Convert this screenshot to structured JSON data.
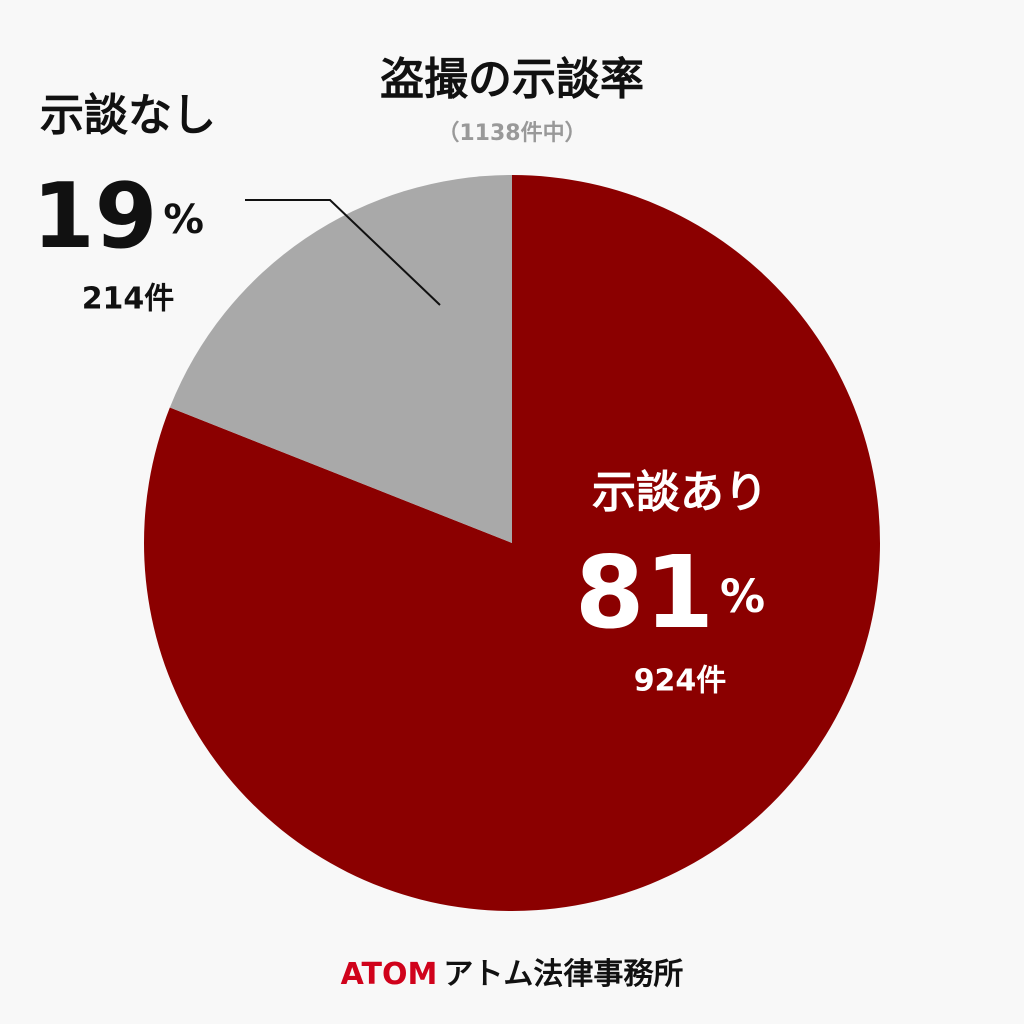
{
  "chart_data": {
    "type": "pie",
    "title": "盗撮の示談率",
    "subtitle": "（1138件中）",
    "categories": [
      "示談あり",
      "示談なし"
    ],
    "values": [
      81,
      19
    ],
    "unit": "%",
    "count_labels": [
      "924件",
      "214件"
    ],
    "colors": [
      "#8b0000",
      "#a9a9a9"
    ]
  },
  "footer": {
    "brand": "ATOM",
    "name": "アトム法律事務所"
  }
}
